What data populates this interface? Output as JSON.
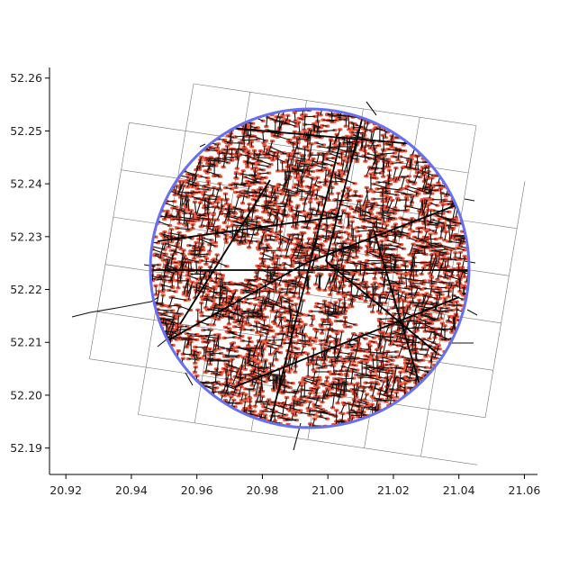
{
  "map": {
    "type": "street-network-map",
    "title": "",
    "xlabel": "",
    "ylabel": "",
    "xlim": [
      20.915,
      21.064
    ],
    "ylim": [
      52.185,
      52.262
    ],
    "x_ticks": [
      "20.92",
      "20.94",
      "20.96",
      "20.98",
      "21.00",
      "21.02",
      "21.04",
      "21.06"
    ],
    "y_ticks": [
      "52.19",
      "52.20",
      "52.21",
      "52.22",
      "52.23",
      "52.24",
      "52.25",
      "52.26"
    ],
    "grid": "rotated tile grid (5x7 cells)",
    "circle": {
      "center_lon": 20.994,
      "center_lat": 52.224,
      "color": "#6670f0"
    },
    "street_color": "#111111",
    "node_color": "#e8543c",
    "boundary_color": "#777777"
  }
}
